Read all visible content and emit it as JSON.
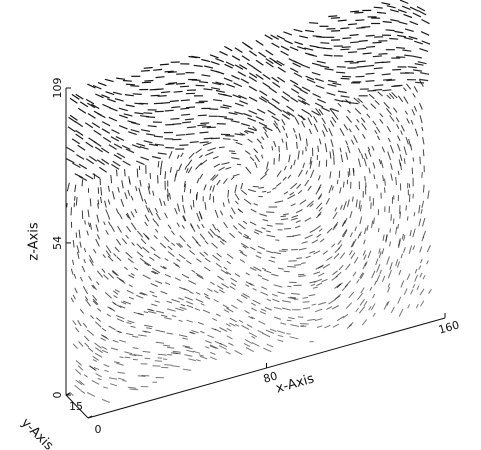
{
  "chart_data": {
    "type": "quiver3d",
    "xlabel": "x-Axis",
    "ylabel": "y-Axis",
    "zlabel": "z-Axis",
    "xlim": [
      0,
      160
    ],
    "ylim": [
      0,
      15
    ],
    "zlim": [
      0,
      109
    ],
    "xticks": [
      80,
      160
    ],
    "yticks": [
      0,
      15
    ],
    "zticks": [
      0,
      54,
      109
    ],
    "color": "#111111"
  }
}
